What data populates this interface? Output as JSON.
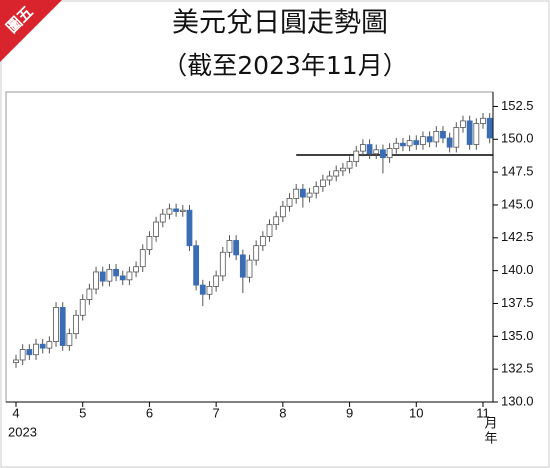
{
  "badge": "圖五",
  "chart_data": {
    "type": "candlestick",
    "title": "美元兌日圓走勢圖",
    "subtitle": "（截至2023年11月）",
    "x": [
      4.0,
      4.1,
      4.2,
      4.3,
      4.4,
      4.5,
      4.6,
      4.7,
      4.8,
      4.9,
      5.0,
      5.1,
      5.2,
      5.3,
      5.4,
      5.5,
      5.6,
      5.7,
      5.8,
      5.9,
      6.0,
      6.1,
      6.2,
      6.3,
      6.4,
      6.5,
      6.6,
      6.7,
      6.8,
      6.9,
      7.0,
      7.1,
      7.2,
      7.3,
      7.4,
      7.5,
      7.6,
      7.7,
      7.8,
      7.9,
      8.0,
      8.1,
      8.2,
      8.3,
      8.4,
      8.5,
      8.6,
      8.7,
      8.8,
      8.9,
      9.0,
      9.1,
      9.2,
      9.3,
      9.4,
      9.5,
      9.6,
      9.7,
      9.8,
      9.9,
      10.0,
      10.1,
      10.2,
      10.3,
      10.4,
      10.5,
      10.6,
      10.7,
      10.8,
      10.9,
      11.0,
      11.1
    ],
    "open": [
      133.0,
      133.2,
      134.0,
      133.6,
      134.4,
      134.1,
      134.6,
      137.2,
      134.3,
      135.2,
      136.6,
      137.8,
      138.6,
      139.9,
      139.2,
      140.1,
      139.6,
      139.3,
      139.9,
      140.3,
      141.6,
      142.6,
      143.7,
      144.3,
      144.7,
      144.5,
      144.6,
      141.9,
      138.9,
      138.2,
      138.8,
      139.6,
      141.4,
      142.3,
      141.2,
      139.5,
      140.8,
      141.9,
      142.6,
      143.5,
      144.1,
      144.9,
      145.5,
      146.2,
      145.6,
      145.9,
      146.4,
      146.9,
      147.2,
      147.6,
      147.8,
      148.3,
      149.1,
      149.6,
      148.9,
      149.2,
      148.6,
      149.3,
      149.7,
      149.5,
      149.9,
      149.6,
      150.2,
      149.8,
      150.6,
      150.1,
      149.4,
      150.9,
      151.4,
      149.6,
      151.2,
      151.6
    ],
    "high": [
      133.6,
      134.4,
      134.4,
      134.8,
      134.8,
      135.0,
      137.6,
      137.6,
      135.6,
      137.0,
      138.2,
      139.0,
      140.3,
      140.3,
      140.5,
      140.5,
      140.0,
      140.3,
      140.7,
      142.0,
      143.0,
      144.1,
      144.7,
      145.1,
      145.1,
      145.0,
      145.0,
      142.3,
      139.3,
      139.2,
      140.0,
      141.8,
      142.7,
      142.7,
      141.6,
      141.2,
      142.3,
      143.0,
      143.9,
      144.5,
      145.3,
      145.9,
      146.6,
      146.6,
      146.3,
      146.8,
      147.3,
      147.6,
      148.0,
      148.2,
      148.7,
      149.5,
      150.0,
      150.0,
      149.6,
      149.6,
      149.7,
      150.1,
      150.1,
      150.3,
      150.3,
      150.6,
      150.6,
      151.0,
      151.0,
      150.5,
      151.3,
      151.8,
      151.8,
      151.6,
      152.0,
      152.0
    ],
    "low": [
      132.6,
      132.8,
      133.2,
      133.2,
      133.7,
      133.7,
      134.2,
      133.9,
      133.9,
      134.8,
      136.2,
      137.4,
      138.2,
      138.8,
      138.8,
      139.2,
      138.9,
      138.9,
      139.5,
      139.9,
      141.2,
      142.2,
      143.3,
      143.9,
      144.1,
      144.1,
      141.5,
      138.5,
      137.3,
      137.8,
      138.4,
      139.2,
      141.0,
      140.8,
      138.3,
      139.1,
      140.4,
      141.5,
      142.2,
      143.1,
      143.7,
      144.5,
      145.1,
      144.8,
      145.2,
      145.5,
      146.0,
      146.5,
      146.8,
      147.2,
      147.4,
      147.9,
      148.7,
      148.5,
      148.5,
      147.4,
      148.2,
      148.9,
      149.1,
      149.1,
      149.2,
      149.2,
      149.4,
      149.4,
      149.7,
      149.0,
      149.0,
      150.5,
      149.2,
      149.2,
      150.8,
      149.7
    ],
    "close": [
      133.2,
      134.0,
      133.6,
      134.4,
      134.1,
      134.6,
      137.2,
      134.3,
      135.2,
      136.6,
      137.8,
      138.6,
      139.9,
      139.2,
      140.1,
      139.6,
      139.3,
      139.9,
      140.3,
      141.6,
      142.6,
      143.7,
      144.3,
      144.7,
      144.5,
      144.6,
      141.9,
      138.9,
      138.2,
      138.8,
      139.6,
      141.4,
      142.3,
      141.2,
      139.5,
      140.8,
      141.9,
      142.6,
      143.5,
      144.1,
      144.9,
      145.5,
      146.2,
      145.6,
      145.9,
      146.4,
      146.9,
      147.2,
      147.6,
      147.8,
      148.3,
      149.1,
      149.6,
      148.9,
      149.2,
      148.6,
      149.3,
      149.7,
      149.5,
      149.9,
      149.6,
      150.2,
      149.8,
      150.6,
      150.1,
      149.4,
      150.9,
      151.4,
      149.6,
      151.2,
      151.6,
      150.1
    ],
    "up_color": "#ffffff",
    "down_color": "#3b6db4",
    "xlim": [
      3.85,
      11.15
    ],
    "xticks": [
      4,
      5,
      6,
      7,
      8,
      9,
      10,
      11
    ],
    "year_label": "2023",
    "x_unit": [
      "月",
      "年"
    ],
    "ylim": [
      130,
      153.6
    ],
    "yticks": [
      {
        "value": 130,
        "label": "130.0"
      },
      132.5,
      {
        "value": 135,
        "label": "135.0"
      },
      137.5,
      {
        "value": 140,
        "label": "140.0"
      },
      142.5,
      {
        "value": 145,
        "label": "145.0"
      },
      147.5,
      {
        "value": 150,
        "label": "150.0"
      },
      152.5
    ],
    "reference_line": {
      "value": 148.8,
      "x": [
        8.2,
        11.15
      ]
    }
  }
}
